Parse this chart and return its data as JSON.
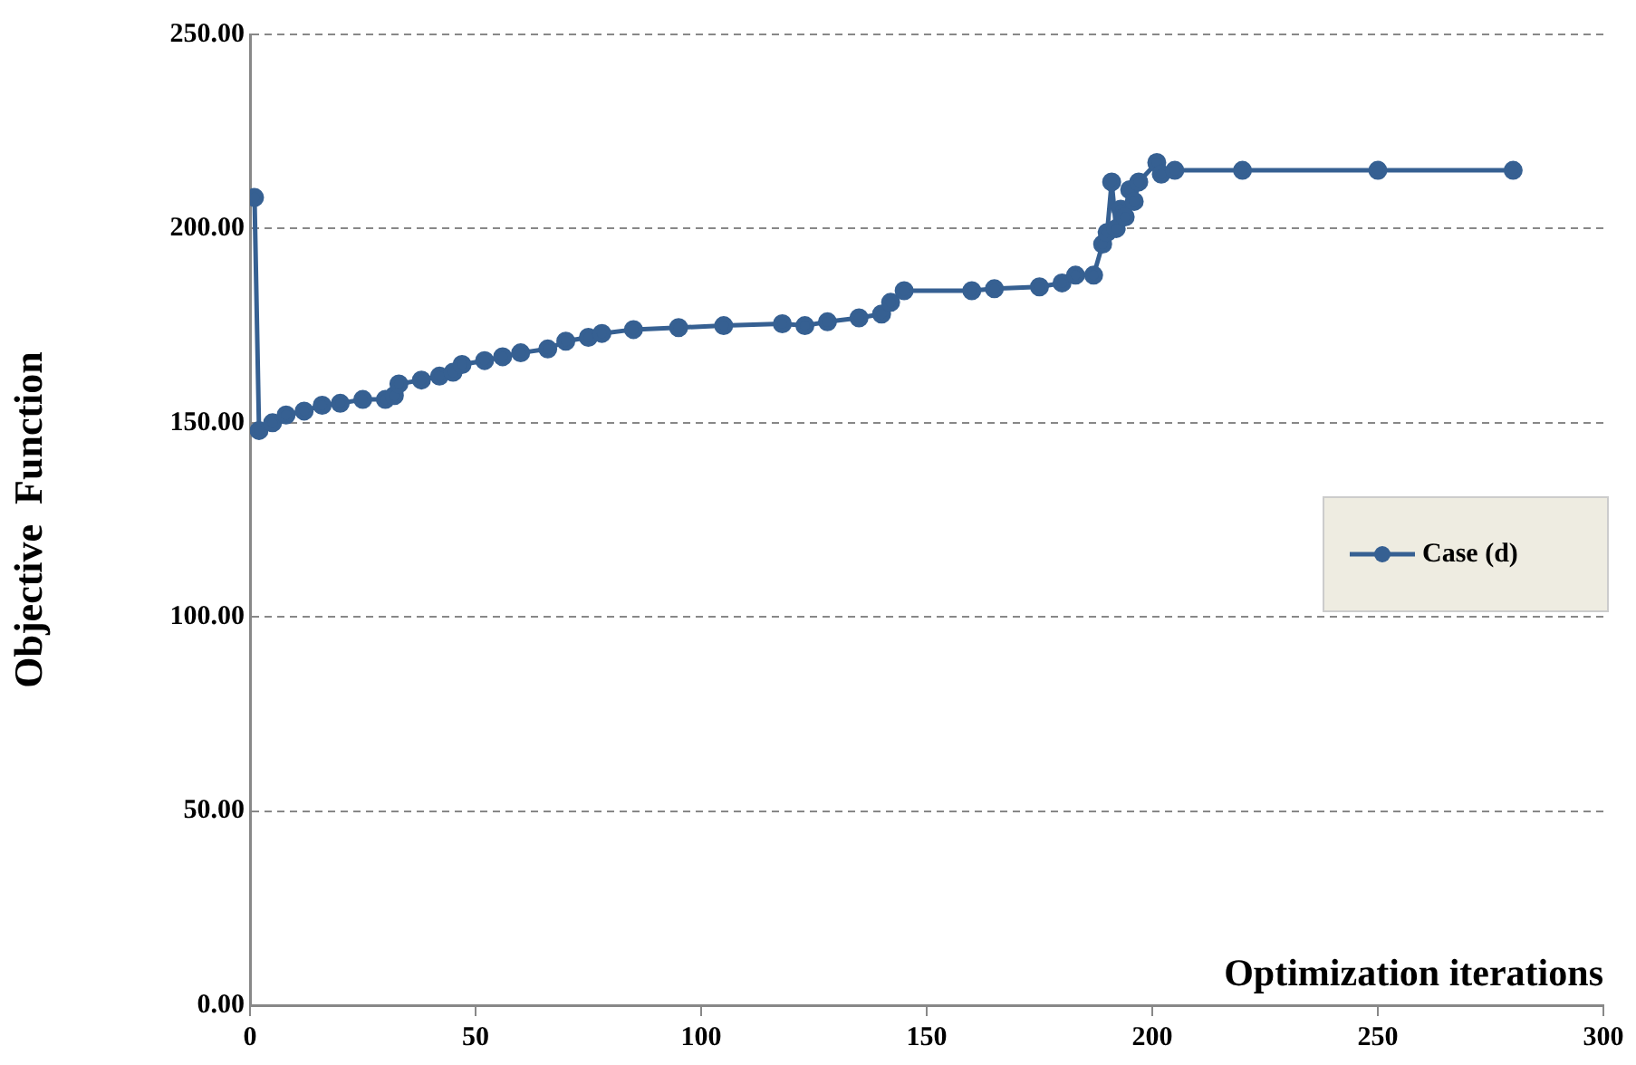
{
  "chart_data": {
    "type": "line",
    "xlabel": "Optimization iterations",
    "ylabel": "Objective  Function",
    "xlim": [
      0,
      300
    ],
    "xticks": [
      0,
      50,
      100,
      150,
      200,
      250,
      300
    ],
    "ylim": [
      0,
      250
    ],
    "yticks": [
      {
        "value": 0,
        "label": "0.00"
      },
      {
        "value": 50,
        "label": "50.00"
      },
      {
        "value": 100,
        "label": "100.00"
      },
      {
        "value": 150,
        "label": "150.00"
      },
      {
        "value": 200,
        "label": "200.00"
      },
      {
        "value": 250,
        "label": "250.00"
      }
    ],
    "grid": "y",
    "legend": "right",
    "marker": "circle",
    "line_style": "solid",
    "series": [
      {
        "name": "Case (d)",
        "color": "#366092",
        "x": [
          1,
          2,
          5,
          8,
          12,
          16,
          20,
          25,
          30,
          32,
          33,
          38,
          42,
          45,
          47,
          52,
          56,
          60,
          66,
          70,
          75,
          78,
          85,
          95,
          105,
          118,
          123,
          128,
          135,
          140,
          142,
          145,
          160,
          165,
          175,
          180,
          183,
          187,
          189,
          190,
          191,
          192,
          193,
          194,
          195,
          196,
          197,
          201,
          202,
          205,
          220,
          250,
          280
        ],
        "values": [
          208,
          148,
          150,
          152,
          153,
          154.5,
          155,
          156,
          156,
          157,
          160,
          161,
          162,
          163,
          165,
          166,
          167,
          168,
          169,
          171,
          172,
          173,
          174,
          174.5,
          175,
          175.5,
          175,
          176,
          177,
          178,
          181,
          184,
          184,
          184.5,
          185,
          186,
          188,
          188,
          196,
          199,
          212,
          200,
          205,
          203,
          210,
          207,
          212,
          217,
          214,
          215,
          215,
          215,
          215
        ]
      }
    ]
  }
}
